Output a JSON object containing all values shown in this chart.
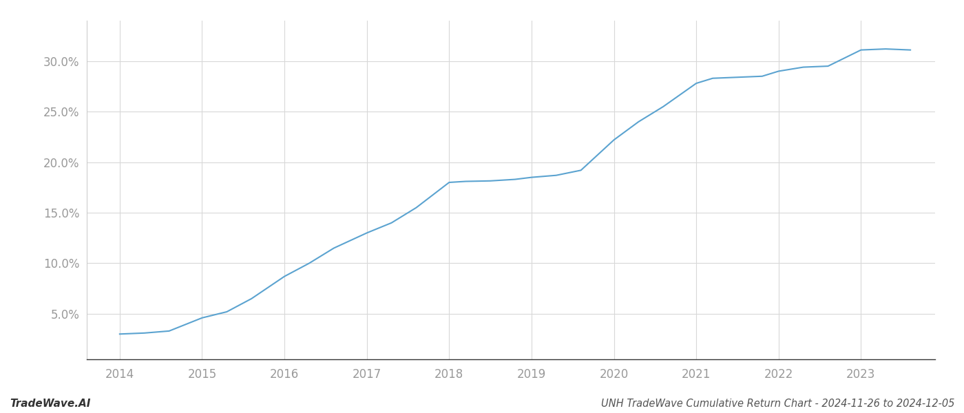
{
  "x_values": [
    2014.0,
    2014.3,
    2014.6,
    2015.0,
    2015.3,
    2015.6,
    2016.0,
    2016.3,
    2016.6,
    2017.0,
    2017.3,
    2017.6,
    2018.0,
    2018.2,
    2018.5,
    2018.8,
    2019.0,
    2019.3,
    2019.6,
    2020.0,
    2020.3,
    2020.6,
    2021.0,
    2021.2,
    2021.5,
    2021.8,
    2022.0,
    2022.3,
    2022.6,
    2023.0,
    2023.3,
    2023.6
  ],
  "y_values": [
    3.0,
    3.1,
    3.3,
    4.6,
    5.2,
    6.5,
    8.7,
    10.0,
    11.5,
    13.0,
    14.0,
    15.5,
    18.0,
    18.1,
    18.15,
    18.3,
    18.5,
    18.7,
    19.2,
    22.2,
    24.0,
    25.5,
    27.8,
    28.3,
    28.4,
    28.5,
    29.0,
    29.4,
    29.5,
    31.1,
    31.2,
    31.1
  ],
  "line_color": "#5ba3d0",
  "line_width": 1.5,
  "title": "UNH TradeWave Cumulative Return Chart - 2024-11-26 to 2024-12-05",
  "watermark": "TradeWave.AI",
  "x_tick_labels": [
    "2014",
    "2015",
    "2016",
    "2017",
    "2018",
    "2019",
    "2020",
    "2021",
    "2022",
    "2023"
  ],
  "x_tick_positions": [
    2014,
    2015,
    2016,
    2017,
    2018,
    2019,
    2020,
    2021,
    2022,
    2023
  ],
  "y_ticks": [
    5.0,
    10.0,
    15.0,
    20.0,
    25.0,
    30.0
  ],
  "ylim": [
    0.5,
    34.0
  ],
  "xlim": [
    2013.6,
    2023.9
  ],
  "background_color": "#ffffff",
  "grid_color": "#d8d8d8",
  "title_fontsize": 10.5,
  "watermark_fontsize": 11,
  "tick_fontsize": 12,
  "tick_color": "#999999"
}
